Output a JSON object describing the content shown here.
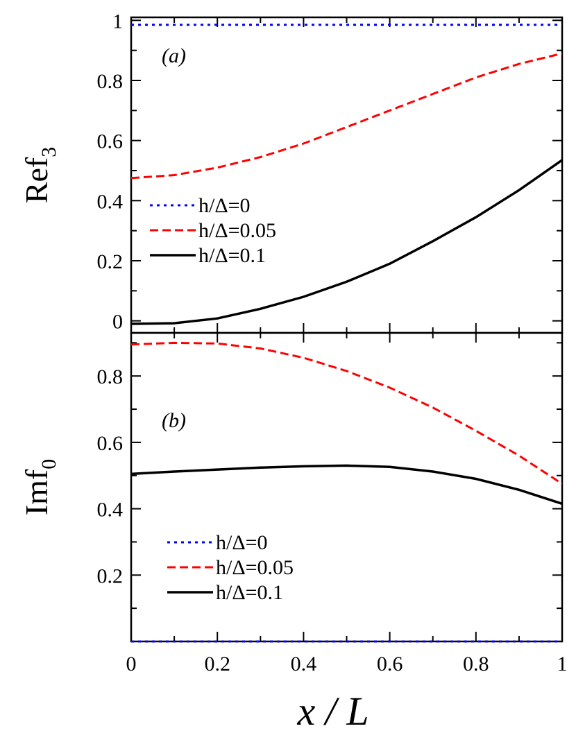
{
  "chart_data": [
    {
      "type": "line",
      "panel_label": "(a)",
      "ylabel_main": "Ref",
      "ylabel_sub": "3",
      "xlim": [
        0,
        1
      ],
      "ylim": [
        -0.04,
        1.01
      ],
      "x_ticks": [
        0,
        0.2,
        0.4,
        0.6,
        0.8,
        1
      ],
      "y_ticks": [
        0,
        0.2,
        0.4,
        0.6,
        0.8,
        1
      ],
      "y_tick_labels": [
        "0",
        "0.2",
        "0.4",
        "0.6",
        "0.8",
        "1"
      ],
      "legend_position": "left-middle",
      "series": [
        {
          "name": "h/Δ=0",
          "color": "#0000ff",
          "style": "dotted",
          "x": [
            0,
            0.2,
            0.4,
            0.6,
            0.8,
            1
          ],
          "y": [
            0.985,
            0.985,
            0.985,
            0.985,
            0.985,
            0.985
          ]
        },
        {
          "name": "h/Δ=0.05",
          "color": "#ff0000",
          "style": "dashed",
          "x": [
            0,
            0.1,
            0.2,
            0.3,
            0.4,
            0.5,
            0.6,
            0.7,
            0.8,
            0.9,
            1
          ],
          "y": [
            0.475,
            0.485,
            0.51,
            0.545,
            0.59,
            0.645,
            0.7,
            0.755,
            0.81,
            0.855,
            0.89
          ]
        },
        {
          "name": "h/Δ=0.1",
          "color": "#000000",
          "style": "solid",
          "x": [
            0,
            0.1,
            0.2,
            0.3,
            0.4,
            0.5,
            0.6,
            0.7,
            0.8,
            0.9,
            1
          ],
          "y": [
            -0.01,
            -0.008,
            0.008,
            0.04,
            0.08,
            0.13,
            0.19,
            0.265,
            0.345,
            0.435,
            0.535
          ]
        }
      ]
    },
    {
      "type": "line",
      "panel_label": "(b)",
      "ylabel_main": "Imf",
      "ylabel_sub": "0",
      "xlabel": "x / L",
      "xlim": [
        0,
        1
      ],
      "ylim": [
        0,
        0.93
      ],
      "x_ticks": [
        0,
        0.2,
        0.4,
        0.6,
        0.8,
        1
      ],
      "x_tick_labels": [
        "0",
        "0.2",
        "0.4",
        "0.6",
        "0.8",
        "1"
      ],
      "y_ticks": [
        0.2,
        0.4,
        0.6,
        0.8
      ],
      "y_tick_labels": [
        "0.2",
        "0.4",
        "0.6",
        "0.8"
      ],
      "legend_position": "bottom-left",
      "series": [
        {
          "name": "h/Δ=0",
          "color": "#0000ff",
          "style": "dotted",
          "x": [
            0,
            0.2,
            0.4,
            0.6,
            0.8,
            1
          ],
          "y": [
            0,
            0,
            0,
            0,
            0,
            0
          ]
        },
        {
          "name": "h/Δ=0.05",
          "color": "#ff0000",
          "style": "dashed",
          "x": [
            0,
            0.1,
            0.2,
            0.3,
            0.4,
            0.5,
            0.6,
            0.7,
            0.8,
            0.9,
            1
          ],
          "y": [
            0.895,
            0.9,
            0.898,
            0.883,
            0.855,
            0.815,
            0.765,
            0.705,
            0.635,
            0.56,
            0.475
          ]
        },
        {
          "name": "h/Δ=0.1",
          "color": "#000000",
          "style": "solid",
          "x": [
            0,
            0.1,
            0.2,
            0.3,
            0.4,
            0.5,
            0.6,
            0.7,
            0.8,
            0.9,
            1
          ],
          "y": [
            0.505,
            0.512,
            0.518,
            0.524,
            0.528,
            0.53,
            0.526,
            0.512,
            0.49,
            0.457,
            0.415
          ]
        }
      ]
    }
  ]
}
